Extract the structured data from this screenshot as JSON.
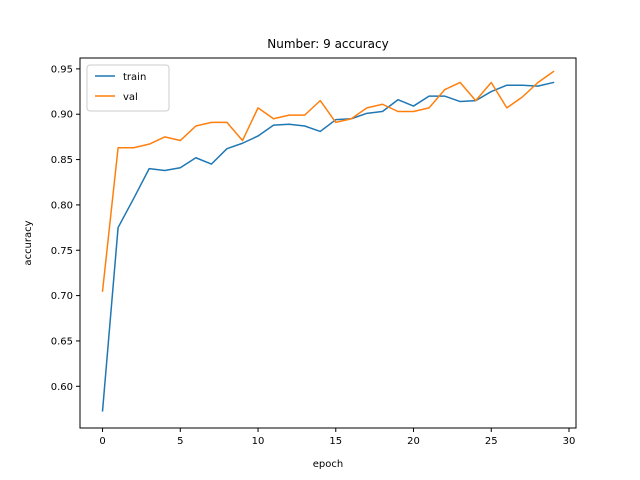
{
  "chart_data": {
    "type": "line",
    "title": "Number: 9 accuracy",
    "xlabel": "epoch",
    "ylabel": "accuracy",
    "xlim": [
      -1.45,
      30.45
    ],
    "ylim": [
      0.554,
      0.962
    ],
    "xticks": [
      0,
      5,
      10,
      15,
      20,
      25,
      30
    ],
    "yticks": [
      0.6,
      0.65,
      0.7,
      0.75,
      0.8,
      0.85,
      0.9,
      0.95
    ],
    "grid": false,
    "legend_position": "top-left",
    "x": [
      0,
      1,
      2,
      3,
      4,
      5,
      6,
      7,
      8,
      9,
      10,
      11,
      12,
      13,
      14,
      15,
      16,
      17,
      18,
      19,
      20,
      21,
      22,
      23,
      24,
      25,
      26,
      27,
      28,
      29
    ],
    "series": [
      {
        "name": "train",
        "color": "#1f77b4",
        "values": [
          0.573,
          0.775,
          0.807,
          0.84,
          0.838,
          0.841,
          0.852,
          0.845,
          0.862,
          0.868,
          0.876,
          0.888,
          0.889,
          0.887,
          0.881,
          0.894,
          0.895,
          0.901,
          0.903,
          0.916,
          0.909,
          0.92,
          0.92,
          0.914,
          0.915,
          0.925,
          0.932,
          0.932,
          0.931,
          0.935
        ]
      },
      {
        "name": "val",
        "color": "#ff7f0e",
        "values": [
          0.705,
          0.863,
          0.863,
          0.867,
          0.875,
          0.871,
          0.887,
          0.891,
          0.891,
          0.871,
          0.907,
          0.895,
          0.899,
          0.899,
          0.915,
          0.891,
          0.895,
          0.907,
          0.911,
          0.903,
          0.903,
          0.907,
          0.927,
          0.935,
          0.915,
          0.935,
          0.907,
          0.919,
          0.935,
          0.947
        ]
      }
    ]
  }
}
